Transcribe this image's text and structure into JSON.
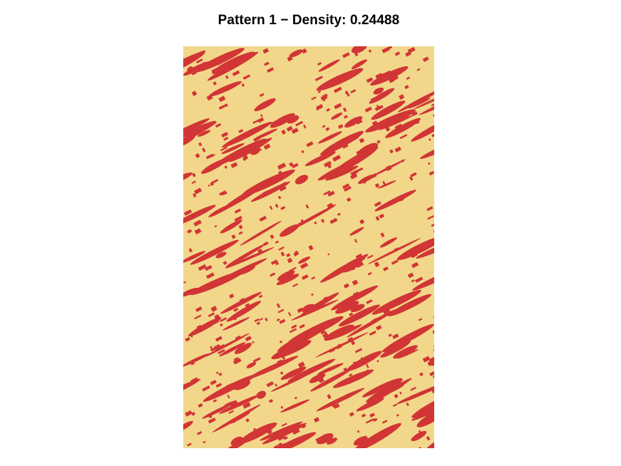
{
  "figure": {
    "title": "Pattern 1 − Density: 0.24488"
  },
  "pattern": {
    "density": 0.24488,
    "background_color": "#f2d78b",
    "foreground_color": "#d13535",
    "streak_direction": "diagonal, rising to the upper-right"
  }
}
